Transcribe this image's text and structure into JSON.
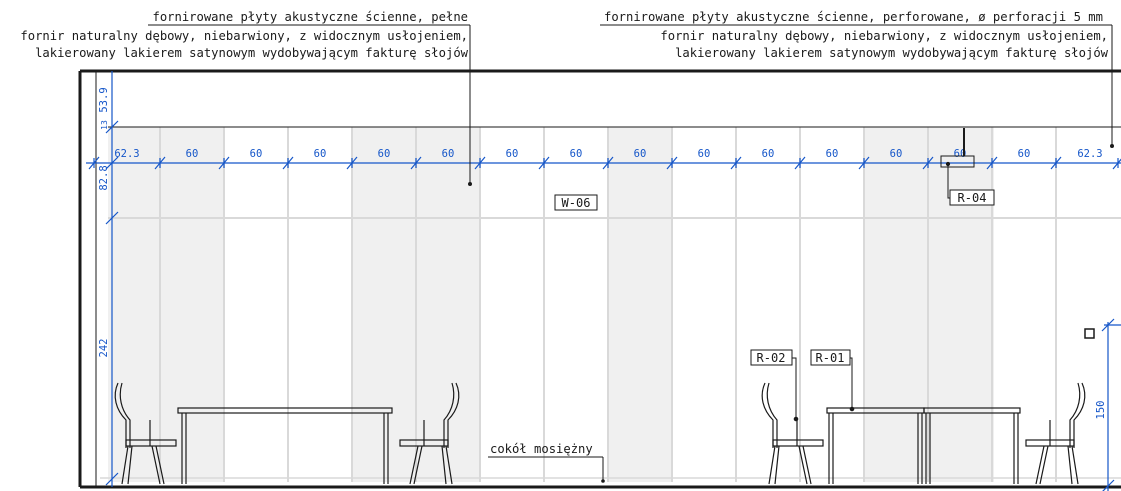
{
  "annotations": {
    "left": {
      "line1": "fornirowane płyty akustyczne ścienne, pełne",
      "line2": "fornir naturalny dębowy, niebarwiony, z widocznym usłojeniem,",
      "line3": "lakierowany lakierem satynowym wydobywającym fakturę słojów"
    },
    "right": {
      "line1": "fornirowane płyty akustyczne ścienne, perforowane, ø perforacji 5 mm",
      "line2": "fornir naturalny dębowy, niebarwiony, z widocznym usłojeniem,",
      "line3": "lakierowany lakierem satynowym wydobywającym fakturę słojów"
    },
    "base": "cokół mosiężny"
  },
  "tags": {
    "wall": "W-06",
    "r04": "R-04",
    "r02": "R-02",
    "r01": "R-01"
  },
  "dimensions": {
    "horizontal": [
      "62.3",
      "60",
      "60",
      "60",
      "60",
      "60",
      "60",
      "60",
      "60",
      "60",
      "60",
      "60",
      "60",
      "60",
      "60",
      "62.3"
    ],
    "left_vertical": [
      "53.9",
      "13",
      "82.8",
      "242"
    ],
    "right_vertical": "150"
  },
  "colors": {
    "line": "#1a1a1a",
    "dimension": "#1556c9",
    "panel_fill": "#f0f0f0",
    "panel_line": "#d9d9d9"
  }
}
